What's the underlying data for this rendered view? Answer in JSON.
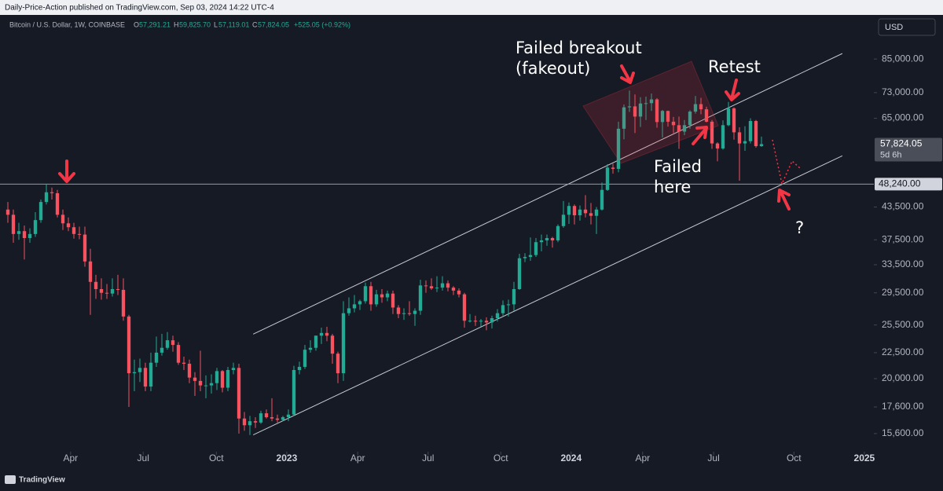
{
  "banner": "Daily-Price-Action published on TradingView.com, Sep 03, 2024 14:22 UTC-4",
  "currency": "USD",
  "logo": "TradingView",
  "legend": {
    "symbol": "Bitcoin / U.S. Dollar, 1W, COINBASE",
    "open_key": "O",
    "open": "57,291.21",
    "high_key": "H",
    "high": "59,825.70",
    "low_key": "L",
    "low": "57,119.01",
    "close_key": "C",
    "close": "57,824.05",
    "change": "+525.05 (+0.92%)"
  },
  "chart_data": {
    "type": "candlestick",
    "log_scale": true,
    "up_color": "#22ab94",
    "down_color": "#f7525f",
    "xlim": [
      -1.43,
      157.43
    ],
    "ylim": [
      14370,
      103400
    ],
    "xticks": [
      {
        "value": 11.4,
        "label": "Apr"
      },
      {
        "value": 24.6,
        "label": "Jul"
      },
      {
        "value": 37.9,
        "label": "Oct"
      },
      {
        "value": 50.7,
        "label": "2023"
      },
      {
        "value": 63.6,
        "label": "Apr"
      },
      {
        "value": 76.4,
        "label": "Jul"
      },
      {
        "value": 89.6,
        "label": "Oct"
      },
      {
        "value": 102.4,
        "label": "2024"
      },
      {
        "value": 115.4,
        "label": "Apr"
      },
      {
        "value": 128.3,
        "label": "Jul"
      },
      {
        "value": 142.9,
        "label": "Oct"
      },
      {
        "value": 155.7,
        "label": "2025"
      }
    ],
    "yticks": [
      {
        "value": 85000,
        "label": "85,000.00"
      },
      {
        "value": 73000,
        "label": "73,000.00"
      },
      {
        "value": 65000,
        "label": "65,000.00"
      },
      {
        "value": 43500,
        "label": "43,500.00"
      },
      {
        "value": 37500,
        "label": "37,500.00"
      },
      {
        "value": 33500,
        "label": "33,500.00"
      },
      {
        "value": 29500,
        "label": "29,500.00"
      },
      {
        "value": 25500,
        "label": "25,500.00"
      },
      {
        "value": 22500,
        "label": "22,500.00"
      },
      {
        "value": 20000,
        "label": "20,000.00"
      },
      {
        "value": 17600,
        "label": "17,600.00"
      },
      {
        "value": 15600,
        "label": "15,600.00"
      }
    ],
    "hline": {
      "value": 48240,
      "label": "48,240.00"
    },
    "last_price": {
      "value": 57824.05,
      "label": "57,824.05",
      "countdown": "5d 6h"
    },
    "channel": [
      {
        "x": [
          44.6,
          151.7
        ],
        "y": [
          24470,
          87140
        ]
      },
      {
        "x": [
          44.6,
          151.7
        ],
        "y": [
          15510,
          54850
        ]
      }
    ],
    "annotations": [
      "Failed breakout",
      "(fakeout)",
      "Retest",
      "Failed",
      "here",
      "?"
    ],
    "open": [
      43000,
      42000,
      38500,
      39000,
      37800,
      38500,
      41000,
      44500,
      46500,
      46300,
      42000,
      40400,
      39700,
      38500,
      38400,
      34000,
      31000,
      30000,
      29500,
      29400,
      30000,
      29900,
      26500,
      20500,
      20600,
      21000,
      19300,
      21500,
      22500,
      23000,
      23800,
      23300,
      21500,
      21400,
      20100,
      19800,
      19400,
      19400,
      19600,
      20700,
      19200,
      20800,
      21000,
      16700,
      16200,
      16500,
      16400,
      17100,
      16800,
      16700,
      16600,
      16800,
      17000,
      20800,
      21100,
      22800,
      23000,
      24300,
      24600,
      24300,
      22400,
      20500,
      26900,
      27500,
      28000,
      28400,
      30400,
      28000,
      29300,
      28900,
      29400,
      27600,
      26800,
      26900,
      26800,
      27200,
      30500,
      30400,
      30100,
      30200,
      30800,
      30200,
      29800,
      29300,
      26000,
      26000,
      25900,
      26000,
      25800,
      26300,
      26900,
      27900,
      28000,
      30000,
      34500,
      34700,
      35000,
      37100,
      37400,
      37800,
      37400,
      39900,
      42000,
      43700,
      41900,
      43000,
      42300,
      41800,
      43000,
      47000,
      52000,
      51700,
      62000,
      68300,
      68600,
      65500,
      69500,
      69600,
      70800,
      63900,
      67200,
      64000,
      63000,
      61200,
      63000,
      67000,
      69300,
      67700,
      64000,
      58000,
      56700,
      63000,
      68000,
      61000,
      58000,
      58600,
      64200,
      57291.21
    ],
    "high": [
      44500,
      43000,
      40500,
      40000,
      39500,
      42500,
      45000,
      48200,
      47500,
      47000,
      43000,
      41500,
      40500,
      39800,
      39800,
      36000,
      32000,
      31500,
      30700,
      31500,
      32000,
      31500,
      26700,
      21800,
      21900,
      21500,
      22500,
      24200,
      24500,
      24700,
      24300,
      23600,
      22100,
      21800,
      20600,
      22700,
      20300,
      20400,
      21000,
      20800,
      21100,
      21500,
      21400,
      17200,
      16900,
      16800,
      17300,
      17400,
      18300,
      17000,
      16900,
      17400,
      21200,
      21600,
      23300,
      23800,
      24300,
      25200,
      25300,
      24500,
      22600,
      28400,
      28900,
      29200,
      28600,
      30900,
      31000,
      29900,
      30000,
      29800,
      29800,
      27900,
      27500,
      28400,
      27500,
      31300,
      31200,
      31500,
      31800,
      31800,
      31200,
      30400,
      30100,
      29500,
      26800,
      26600,
      26200,
      26400,
      26600,
      27400,
      28500,
      28600,
      31000,
      35200,
      35300,
      37900,
      37800,
      38400,
      38400,
      38000,
      40200,
      44700,
      44400,
      44000,
      43800,
      45900,
      44300,
      43500,
      48600,
      52800,
      52900,
      64000,
      69200,
      73700,
      72400,
      71500,
      71700,
      72700,
      71200,
      67500,
      67300,
      65400,
      65500,
      64500,
      67400,
      71900,
      71300,
      68500,
      64500,
      58300,
      64400,
      70000,
      68300,
      62400,
      62700,
      65000,
      64500,
      59825.7
    ],
    "low": [
      40500,
      37000,
      37500,
      34300,
      37000,
      38000,
      40500,
      44000,
      45000,
      41500,
      39200,
      39000,
      37700,
      37600,
      33200,
      26700,
      28700,
      28600,
      28700,
      29000,
      29200,
      26000,
      17600,
      18900,
      19700,
      18900,
      18900,
      21100,
      22200,
      22800,
      22600,
      21300,
      20800,
      19600,
      18500,
      18900,
      18300,
      18700,
      19000,
      18800,
      18900,
      20400,
      15600,
      15800,
      15500,
      16000,
      16300,
      16700,
      16500,
      16400,
      16500,
      16500,
      16900,
      20400,
      20900,
      22500,
      22700,
      23400,
      23700,
      21400,
      19600,
      19800,
      26600,
      27000,
      27300,
      28100,
      27200,
      27700,
      28200,
      28400,
      26800,
      26300,
      26100,
      26600,
      25400,
      26700,
      29500,
      29900,
      29600,
      29800,
      29700,
      29200,
      28900,
      25200,
      25800,
      25400,
      25300,
      24900,
      25100,
      25900,
      26600,
      26500,
      27200,
      29900,
      33900,
      34100,
      34700,
      35600,
      36500,
      36200,
      37100,
      39600,
      40300,
      40200,
      40900,
      41500,
      40200,
      38500,
      42800,
      46800,
      50600,
      50900,
      59100,
      66900,
      60800,
      62500,
      64500,
      67200,
      62300,
      59600,
      62600,
      60800,
      56600,
      60200,
      62000,
      66400,
      66200,
      63800,
      56600,
      53500,
      56400,
      62700,
      59000,
      49000,
      56100,
      58000,
      56900,
      57119.01
    ],
    "close": [
      42000,
      38500,
      39000,
      37800,
      38500,
      41000,
      44500,
      46500,
      46300,
      42000,
      40400,
      39700,
      38500,
      38400,
      34000,
      31000,
      30000,
      29500,
      29400,
      30000,
      29900,
      26500,
      20500,
      20600,
      21000,
      19300,
      21500,
      22500,
      23000,
      23800,
      23300,
      21500,
      21400,
      20100,
      19800,
      19400,
      19400,
      19600,
      20700,
      19200,
      20800,
      21000,
      16700,
      16200,
      16500,
      16400,
      17100,
      16800,
      16700,
      16600,
      16800,
      17000,
      20800,
      21100,
      22800,
      23000,
      24300,
      24600,
      24300,
      22400,
      20500,
      26900,
      27500,
      28000,
      28400,
      30400,
      28000,
      29300,
      28900,
      29400,
      27600,
      26800,
      26900,
      26800,
      27200,
      30500,
      30400,
      30100,
      30200,
      30800,
      30200,
      29800,
      29300,
      26000,
      26000,
      25900,
      26000,
      25800,
      26300,
      26900,
      27900,
      28000,
      30000,
      34500,
      34700,
      35000,
      37100,
      37400,
      37800,
      37400,
      39900,
      42000,
      43700,
      41900,
      43000,
      42300,
      41800,
      43000,
      47000,
      52000,
      51700,
      62000,
      68300,
      68600,
      65500,
      69500,
      69600,
      70800,
      63900,
      67200,
      64000,
      63000,
      61200,
      63000,
      67000,
      69300,
      67700,
      64000,
      58000,
      56700,
      63000,
      68000,
      61000,
      58000,
      58600,
      64200,
      57299,
      57824.05
    ]
  }
}
